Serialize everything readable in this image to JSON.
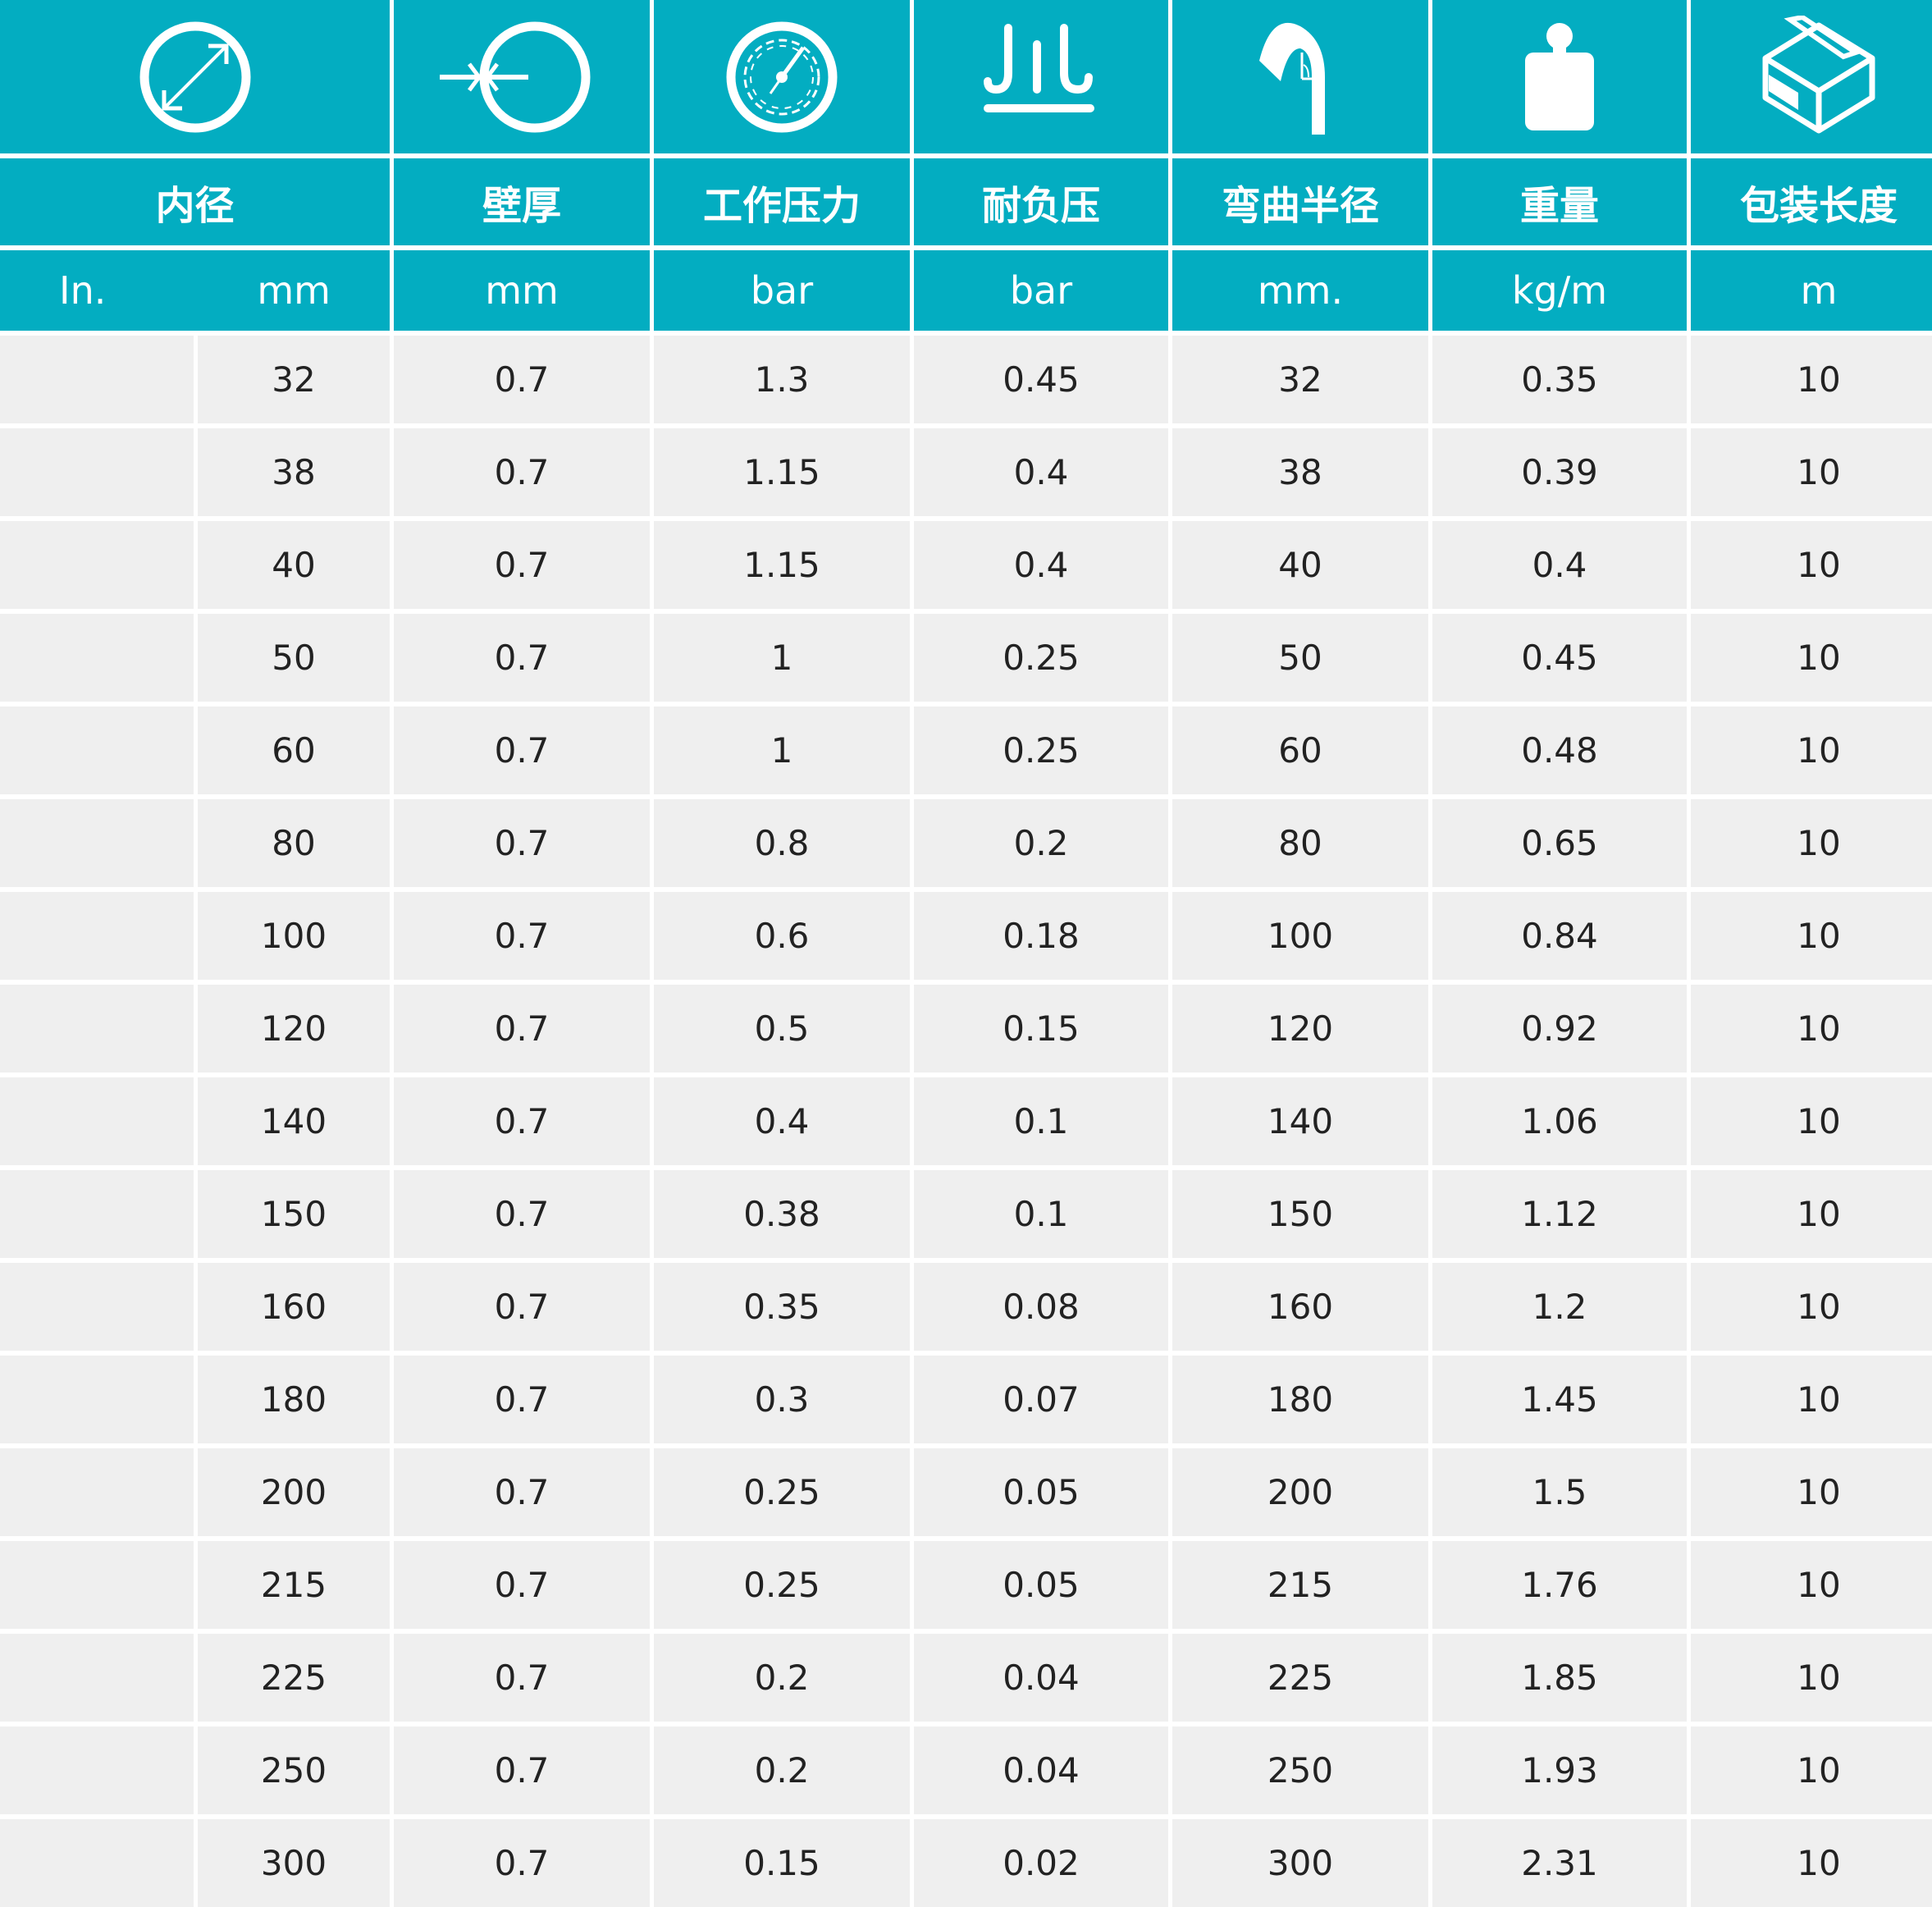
{
  "theme": {
    "header_bg": "#03adc1",
    "row_bg": "#efefef",
    "text": "#222222"
  },
  "columns": [
    {
      "icon": "inner-diameter-icon",
      "title": "内径",
      "units": [
        "In.",
        "mm"
      ]
    },
    {
      "icon": "wall-thickness-icon",
      "title": "壁厚",
      "units": [
        "mm"
      ]
    },
    {
      "icon": "pressure-gauge-icon",
      "title": "工作压力",
      "units": [
        "bar"
      ]
    },
    {
      "icon": "vacuum-icon",
      "title": "耐负压",
      "units": [
        "bar"
      ]
    },
    {
      "icon": "bend-radius-icon",
      "title": "弯曲半径",
      "units": [
        "mm."
      ]
    },
    {
      "icon": "weight-icon",
      "title": "重量",
      "units": [
        "kg/m"
      ]
    },
    {
      "icon": "package-box-icon",
      "title": "包装长度",
      "units": [
        "m"
      ]
    }
  ],
  "rows": [
    [
      "",
      "32",
      "0.7",
      "1.3",
      "0.45",
      "32",
      "0.35",
      "10"
    ],
    [
      "",
      "38",
      "0.7",
      "1.15",
      "0.4",
      "38",
      "0.39",
      "10"
    ],
    [
      "",
      "40",
      "0.7",
      "1.15",
      "0.4",
      "40",
      "0.4",
      "10"
    ],
    [
      "",
      "50",
      "0.7",
      "1",
      "0.25",
      "50",
      "0.45",
      "10"
    ],
    [
      "",
      "60",
      "0.7",
      "1",
      "0.25",
      "60",
      "0.48",
      "10"
    ],
    [
      "",
      "80",
      "0.7",
      "0.8",
      "0.2",
      "80",
      "0.65",
      "10"
    ],
    [
      "",
      "100",
      "0.7",
      "0.6",
      "0.18",
      "100",
      "0.84",
      "10"
    ],
    [
      "",
      "120",
      "0.7",
      "0.5",
      "0.15",
      "120",
      "0.92",
      "10"
    ],
    [
      "",
      "140",
      "0.7",
      "0.4",
      "0.1",
      "140",
      "1.06",
      "10"
    ],
    [
      "",
      "150",
      "0.7",
      "0.38",
      "0.1",
      "150",
      "1.12",
      "10"
    ],
    [
      "",
      "160",
      "0.7",
      "0.35",
      "0.08",
      "160",
      "1.2",
      "10"
    ],
    [
      "",
      "180",
      "0.7",
      "0.3",
      "0.07",
      "180",
      "1.45",
      "10"
    ],
    [
      "",
      "200",
      "0.7",
      "0.25",
      "0.05",
      "200",
      "1.5",
      "10"
    ],
    [
      "",
      "215",
      "0.7",
      "0.25",
      "0.05",
      "215",
      "1.76",
      "10"
    ],
    [
      "",
      "225",
      "0.7",
      "0.2",
      "0.04",
      "225",
      "1.85",
      "10"
    ],
    [
      "",
      "250",
      "0.7",
      "0.2",
      "0.04",
      "250",
      "1.93",
      "10"
    ],
    [
      "",
      "300",
      "0.7",
      "0.15",
      "0.02",
      "300",
      "2.31",
      "10"
    ]
  ]
}
